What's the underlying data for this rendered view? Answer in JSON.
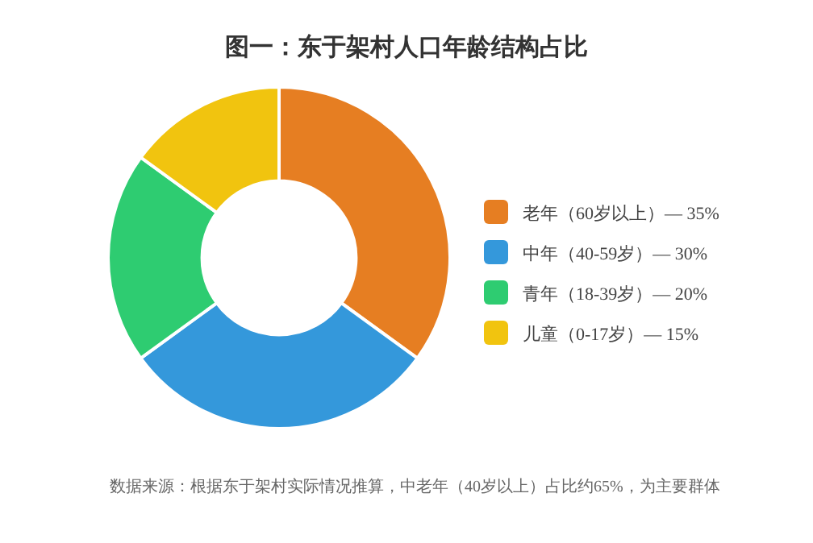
{
  "chart_data": {
    "type": "donut",
    "title": "图一：东于架村人口年龄结构占比",
    "categories": [
      "老年（60岁以上）— 35%",
      "中年（40-59岁）— 30%",
      "青年（18-39岁）— 20%",
      "儿童（0-17岁）— 15%"
    ],
    "values": [
      35,
      30,
      20,
      15
    ],
    "colors": [
      "#e67e22",
      "#3498db",
      "#2ecc71",
      "#f1c40f"
    ],
    "legend": "right",
    "annotations": [
      "数据来源：根据东于架村实际情况推算，中老年（40岁以上）占比约65%，为主要群体"
    ]
  }
}
